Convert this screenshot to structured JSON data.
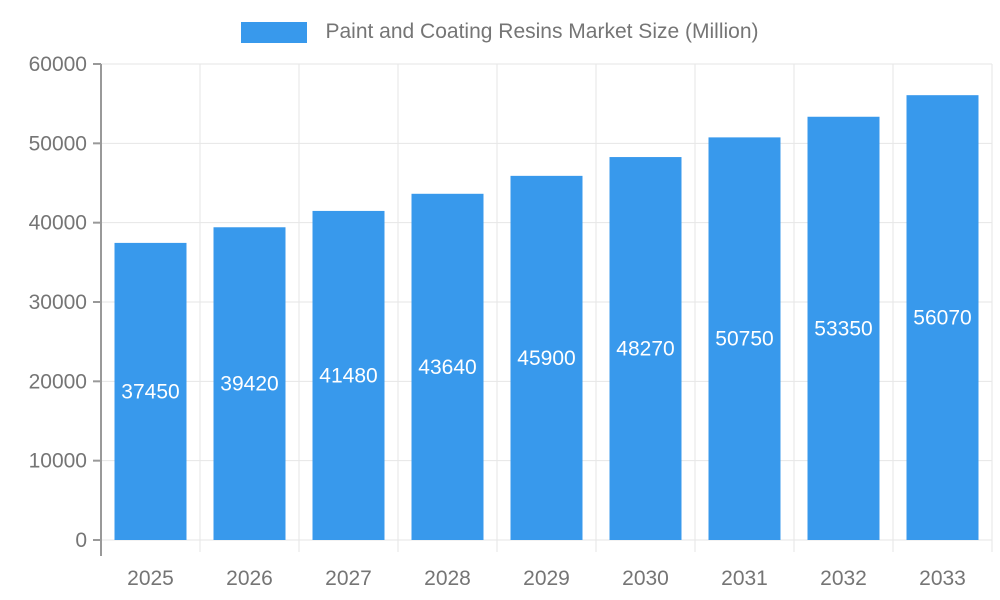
{
  "legend": {
    "label": "Paint and Coating Resins Market Size (Million)",
    "swatch_color": "#3899EC"
  },
  "chart_data": {
    "type": "bar",
    "title": "Paint and Coating Resins Market Size (Million)",
    "categories": [
      "2025",
      "2026",
      "2027",
      "2028",
      "2029",
      "2030",
      "2031",
      "2032",
      "2033"
    ],
    "values": [
      37450,
      39420,
      41480,
      43640,
      45900,
      48270,
      50750,
      53350,
      56070
    ],
    "xlabel": "",
    "ylabel": "",
    "ylim": [
      0,
      60000
    ],
    "ytick_step": 10000,
    "ytick_labels": [
      "0",
      "10000",
      "20000",
      "30000",
      "40000",
      "50000",
      "60000"
    ],
    "grid": true,
    "legend_position": "top-center",
    "value_labels": "inside-center",
    "colors": {
      "bar": "#3899EC",
      "value_label_text": "#ffffff",
      "axis_text": "#757575",
      "grid_line": "#e6e6e6",
      "axis_line": "#999999"
    }
  }
}
